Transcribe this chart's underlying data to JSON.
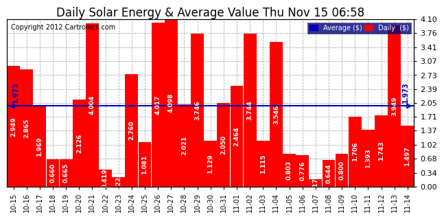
{
  "title": "Daily Solar Energy & Average Value Thu Nov 15 06:58",
  "copyright": "Copyright 2012 Cartronics.com",
  "categories": [
    "10-15",
    "10-16",
    "10-17",
    "10-18",
    "10-19",
    "10-20",
    "10-21",
    "10-22",
    "10-23",
    "10-24",
    "10-25",
    "10-26",
    "10-27",
    "10-28",
    "10-29",
    "10-30",
    "10-31",
    "11-01",
    "11-02",
    "11-03",
    "11-04",
    "11-05",
    "11-06",
    "11-07",
    "11-08",
    "11-09",
    "11-10",
    "11-11",
    "11-12",
    "11-13",
    "11-14"
  ],
  "values": [
    2.949,
    2.865,
    1.969,
    0.66,
    0.665,
    2.126,
    4.004,
    0.419,
    0.226,
    2.76,
    1.081,
    4.017,
    4.098,
    2.021,
    3.746,
    1.129,
    2.05,
    2.464,
    3.744,
    1.115,
    3.546,
    0.803,
    0.776,
    0.172,
    0.644,
    0.8,
    1.706,
    1.393,
    1.743,
    3.949,
    1.497
  ],
  "average": 1.973,
  "ylim": [
    0.0,
    4.1
  ],
  "yticks": [
    0.0,
    0.34,
    0.68,
    1.02,
    1.37,
    1.71,
    2.05,
    2.39,
    2.73,
    3.07,
    3.41,
    3.76,
    4.1
  ],
  "bar_color": "#FF0000",
  "average_line_color": "#0000BB",
  "background_color": "#FFFFFF",
  "plot_bg_color": "#FFFFFF",
  "grid_color": "#999999",
  "title_fontsize": 12,
  "tick_fontsize": 8,
  "val_label_fontsize": 6.5,
  "copyright_fontsize": 7,
  "legend_avg_color": "#0000BB",
  "legend_daily_color": "#FF0000",
  "legend_bg_color": "#000080"
}
